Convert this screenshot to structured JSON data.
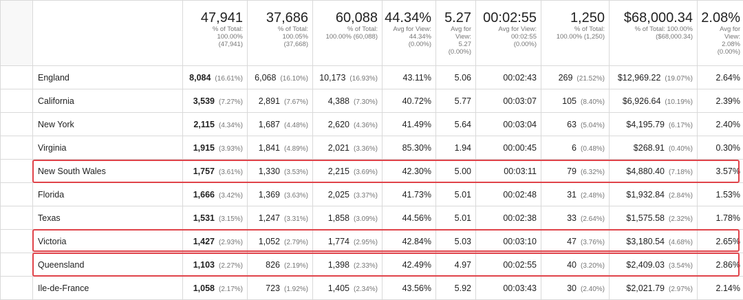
{
  "totals": [
    {
      "value": "47,941",
      "sub": "% of Total:\n100.00%\n(47,941)"
    },
    {
      "value": "37,686",
      "sub": "% of Total:\n100.05%\n(37,668)"
    },
    {
      "value": "60,088",
      "sub": "% of Total:\n100.00% (60,088)"
    },
    {
      "value": "44.34%",
      "sub": "Avg for View:\n44.34%\n(0.00%)"
    },
    {
      "value": "5.27",
      "sub": "Avg for\nView:\n5.27\n(0.00%)"
    },
    {
      "value": "00:02:55",
      "sub": "Avg for View:\n00:02:55\n(0.00%)"
    },
    {
      "value": "1,250",
      "sub": "% of Total:\n100.00% (1,250)"
    },
    {
      "value": "$68,000.34",
      "sub": "% of Total: 100.00%\n($68,000.34)"
    },
    {
      "value": "2.08%",
      "sub": "Avg for\nView:\n2.08%\n(0.00%)"
    }
  ],
  "rows": [
    {
      "region": "England",
      "users": "8,084",
      "users_pct": "(16.61%)",
      "new_users": "6,068",
      "new_users_pct": "(16.10%)",
      "sessions": "10,173",
      "sessions_pct": "(16.93%)",
      "bounce_rate": "43.11%",
      "pages_per_session": "5.06",
      "avg_session": "00:02:43",
      "transactions": "269",
      "transactions_pct": "(21.52%)",
      "revenue": "$12,969.22",
      "revenue_pct": "(19.07%)",
      "conversion": "2.64%"
    },
    {
      "region": "California",
      "users": "3,539",
      "users_pct": "(7.27%)",
      "new_users": "2,891",
      "new_users_pct": "(7.67%)",
      "sessions": "4,388",
      "sessions_pct": "(7.30%)",
      "bounce_rate": "40.72%",
      "pages_per_session": "5.77",
      "avg_session": "00:03:07",
      "transactions": "105",
      "transactions_pct": "(8.40%)",
      "revenue": "$6,926.64",
      "revenue_pct": "(10.19%)",
      "conversion": "2.39%"
    },
    {
      "region": "New York",
      "users": "2,115",
      "users_pct": "(4.34%)",
      "new_users": "1,687",
      "new_users_pct": "(4.48%)",
      "sessions": "2,620",
      "sessions_pct": "(4.36%)",
      "bounce_rate": "41.49%",
      "pages_per_session": "5.64",
      "avg_session": "00:03:04",
      "transactions": "63",
      "transactions_pct": "(5.04%)",
      "revenue": "$4,195.79",
      "revenue_pct": "(6.17%)",
      "conversion": "2.40%"
    },
    {
      "region": "Virginia",
      "users": "1,915",
      "users_pct": "(3.93%)",
      "new_users": "1,841",
      "new_users_pct": "(4.89%)",
      "sessions": "2,021",
      "sessions_pct": "(3.36%)",
      "bounce_rate": "85.30%",
      "pages_per_session": "1.94",
      "avg_session": "00:00:45",
      "transactions": "6",
      "transactions_pct": "(0.48%)",
      "revenue": "$268.91",
      "revenue_pct": "(0.40%)",
      "conversion": "0.30%"
    },
    {
      "region": "New South Wales",
      "users": "1,757",
      "users_pct": "(3.61%)",
      "new_users": "1,330",
      "new_users_pct": "(3.53%)",
      "sessions": "2,215",
      "sessions_pct": "(3.69%)",
      "bounce_rate": "42.30%",
      "pages_per_session": "5.00",
      "avg_session": "00:03:11",
      "transactions": "79",
      "transactions_pct": "(6.32%)",
      "revenue": "$4,880.40",
      "revenue_pct": "(7.18%)",
      "conversion": "3.57%"
    },
    {
      "region": "Florida",
      "users": "1,666",
      "users_pct": "(3.42%)",
      "new_users": "1,369",
      "new_users_pct": "(3.63%)",
      "sessions": "2,025",
      "sessions_pct": "(3.37%)",
      "bounce_rate": "41.73%",
      "pages_per_session": "5.01",
      "avg_session": "00:02:48",
      "transactions": "31",
      "transactions_pct": "(2.48%)",
      "revenue": "$1,932.84",
      "revenue_pct": "(2.84%)",
      "conversion": "1.53%"
    },
    {
      "region": "Texas",
      "users": "1,531",
      "users_pct": "(3.15%)",
      "new_users": "1,247",
      "new_users_pct": "(3.31%)",
      "sessions": "1,858",
      "sessions_pct": "(3.09%)",
      "bounce_rate": "44.56%",
      "pages_per_session": "5.01",
      "avg_session": "00:02:38",
      "transactions": "33",
      "transactions_pct": "(2.64%)",
      "revenue": "$1,575.58",
      "revenue_pct": "(2.32%)",
      "conversion": "1.78%"
    },
    {
      "region": "Victoria",
      "users": "1,427",
      "users_pct": "(2.93%)",
      "new_users": "1,052",
      "new_users_pct": "(2.79%)",
      "sessions": "1,774",
      "sessions_pct": "(2.95%)",
      "bounce_rate": "42.84%",
      "pages_per_session": "5.03",
      "avg_session": "00:03:10",
      "transactions": "47",
      "transactions_pct": "(3.76%)",
      "revenue": "$3,180.54",
      "revenue_pct": "(4.68%)",
      "conversion": "2.65%"
    },
    {
      "region": "Queensland",
      "users": "1,103",
      "users_pct": "(2.27%)",
      "new_users": "826",
      "new_users_pct": "(2.19%)",
      "sessions": "1,398",
      "sessions_pct": "(2.33%)",
      "bounce_rate": "42.49%",
      "pages_per_session": "4.97",
      "avg_session": "00:02:55",
      "transactions": "40",
      "transactions_pct": "(3.20%)",
      "revenue": "$2,409.03",
      "revenue_pct": "(3.54%)",
      "conversion": "2.86%"
    },
    {
      "region": "Ile-de-France",
      "users": "1,058",
      "users_pct": "(2.17%)",
      "new_users": "723",
      "new_users_pct": "(1.92%)",
      "sessions": "1,405",
      "sessions_pct": "(2.34%)",
      "bounce_rate": "43.56%",
      "pages_per_session": "5.92",
      "avg_session": "00:03:43",
      "transactions": "30",
      "transactions_pct": "(2.40%)",
      "revenue": "$2,021.79",
      "revenue_pct": "(2.97%)",
      "conversion": "2.14%"
    }
  ],
  "colors": {
    "highlight": "#e0434a",
    "grid": "#d9d9d9",
    "muted": "#757575"
  }
}
